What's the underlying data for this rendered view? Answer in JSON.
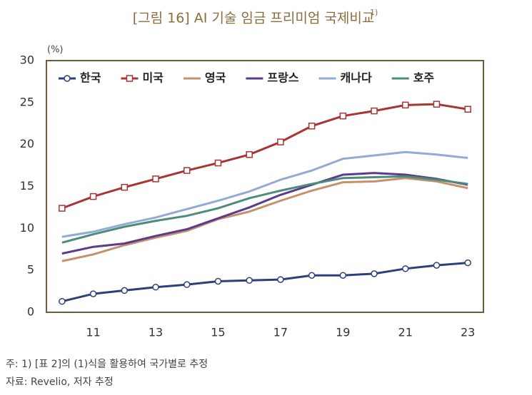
{
  "chart_data": {
    "type": "line",
    "title": "[그림 16] AI 기술 임금 프리미엄 국제비교",
    "title_sup": "1)",
    "y_unit": "(%)",
    "x": [
      10,
      11,
      12,
      13,
      14,
      15,
      16,
      17,
      18,
      19,
      20,
      21,
      22,
      23
    ],
    "xlim": [
      9.5,
      23.5
    ],
    "xticks": [
      11,
      13,
      15,
      17,
      19,
      21,
      23
    ],
    "ylim": [
      0,
      30
    ],
    "yticks": [
      0,
      5,
      10,
      15,
      20,
      25,
      30
    ],
    "grid": false,
    "legend": "top-left",
    "series": [
      {
        "name": "한국",
        "color": "#2e3f7c",
        "marker": "circle",
        "values": [
          1.3,
          2.2,
          2.6,
          3.0,
          3.3,
          3.7,
          3.8,
          3.9,
          4.4,
          4.4,
          4.6,
          5.2,
          5.6,
          5.9
        ]
      },
      {
        "name": "미국",
        "color": "#a93434",
        "marker": "square",
        "values": [
          12.4,
          13.8,
          14.9,
          15.9,
          16.9,
          17.8,
          18.8,
          20.3,
          22.2,
          23.4,
          24.0,
          24.7,
          24.8,
          24.2
        ]
      },
      {
        "name": "영국",
        "color": "#c4916b",
        "values": [
          6.1,
          6.9,
          8.0,
          8.9,
          9.7,
          11.1,
          12.0,
          13.3,
          14.5,
          15.5,
          15.6,
          16.0,
          15.6,
          14.8
        ]
      },
      {
        "name": "프랑스",
        "color": "#5b3c8c",
        "values": [
          7.0,
          7.8,
          8.2,
          9.1,
          9.9,
          11.2,
          12.5,
          14.0,
          15.2,
          16.4,
          16.6,
          16.4,
          15.9,
          15.2
        ]
      },
      {
        "name": "캐나다",
        "color": "#93abd3",
        "values": [
          9.0,
          9.6,
          10.5,
          11.3,
          12.3,
          13.3,
          14.4,
          15.8,
          16.9,
          18.3,
          18.7,
          19.1,
          18.8,
          18.4
        ]
      },
      {
        "name": "호주",
        "color": "#4d8c7c",
        "values": [
          8.3,
          9.3,
          10.2,
          10.9,
          11.5,
          12.4,
          13.6,
          14.5,
          15.3,
          16.0,
          16.1,
          16.2,
          15.8,
          15.3
        ]
      }
    ],
    "notes": [
      "주: 1) [표 2]의 (1)식을 활용하여 국가별로 추정",
      "자료: Revelio, 저자 추정"
    ]
  }
}
